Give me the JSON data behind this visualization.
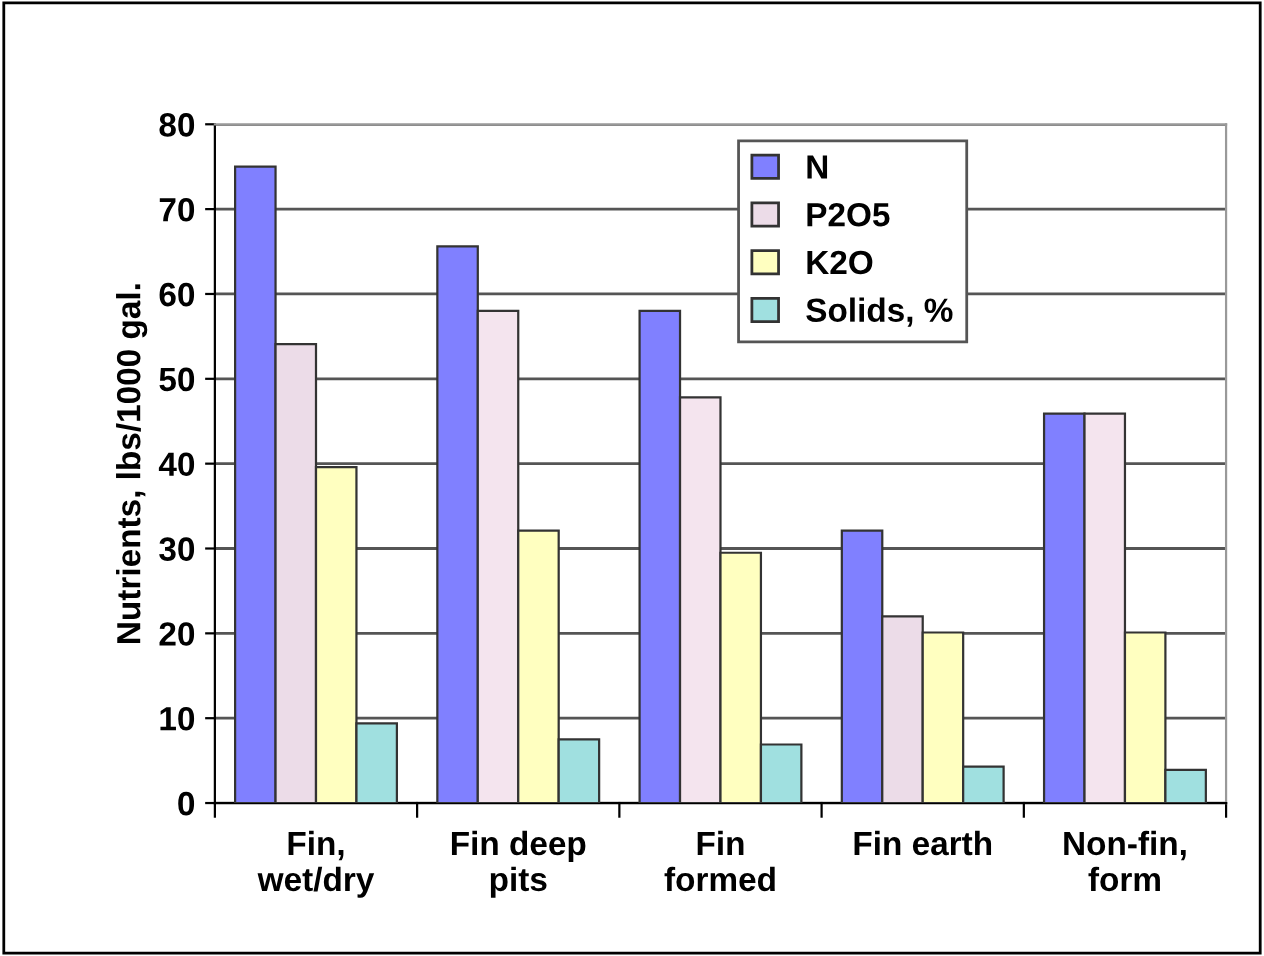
{
  "chart_data": {
    "type": "bar",
    "ylabel": "Nutrients, lbs/1000 gal.",
    "categories": [
      "Fin,\nwet/dry",
      "Fin deep\npits",
      "Fin\nformed",
      "Fin earth",
      "Non-fin,\nform"
    ],
    "series": [
      {
        "name": "N",
        "color": "#8080ff",
        "values": [
          75,
          65.6,
          58,
          32.1,
          45.9
        ]
      },
      {
        "name": "P2O5",
        "color": "#ecdce8",
        "colors": [
          "#ecdce8",
          "#f4e4ee",
          "#f4e4ee",
          "#ecdce8",
          "#f4e4ee"
        ],
        "values": [
          54.1,
          58,
          47.8,
          22,
          45.9
        ]
      },
      {
        "name": "K2O",
        "color": "#ffffc0",
        "values": [
          39.6,
          32.1,
          29.5,
          20.1,
          20.1
        ]
      },
      {
        "name": "Solids, %",
        "color": "#a0e0e0",
        "values": [
          9.4,
          7.5,
          6.9,
          4.3,
          3.9
        ]
      }
    ],
    "ylim": [
      0,
      80
    ],
    "yticks": [
      0,
      10,
      20,
      30,
      40,
      50,
      60,
      70,
      80
    ],
    "grid": "y",
    "legend": "top right"
  }
}
